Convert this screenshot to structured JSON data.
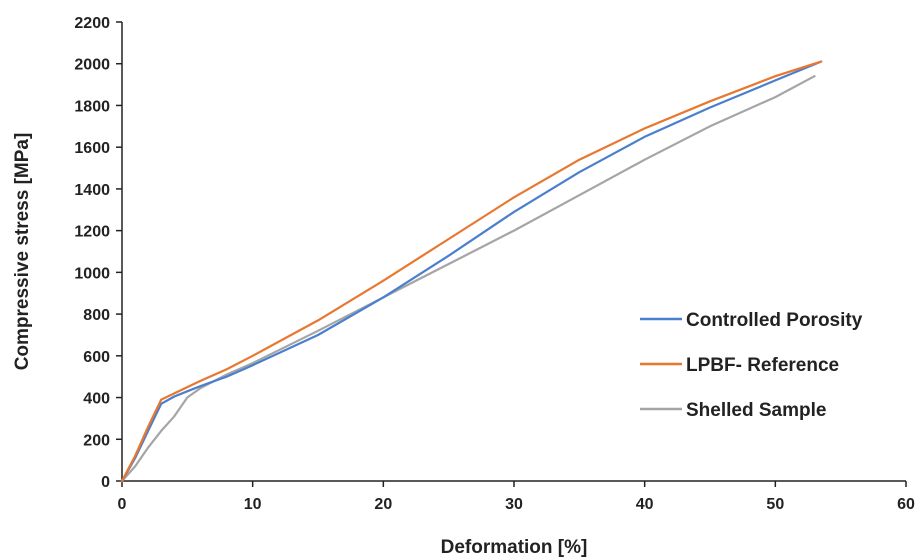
{
  "chart_data": {
    "type": "line",
    "xlabel": "Deformation [%]",
    "ylabel": "Compressive stress [MPa]",
    "xlim": [
      0,
      60
    ],
    "ylim": [
      0,
      2200
    ],
    "xticks": [
      0,
      10,
      20,
      30,
      40,
      50,
      60
    ],
    "yticks": [
      0,
      200,
      400,
      600,
      800,
      1000,
      1200,
      1400,
      1600,
      1800,
      2000,
      2200
    ],
    "grid": false,
    "legend_position": "right",
    "series": [
      {
        "name": "Controlled Porosity",
        "color": "#4a7fcf",
        "x": [
          0,
          1,
          2,
          3,
          4,
          5,
          6,
          8,
          10,
          15,
          20,
          25,
          30,
          35,
          40,
          45,
          50,
          53.5
        ],
        "y": [
          0,
          110,
          240,
          370,
          405,
          430,
          455,
          500,
          555,
          700,
          880,
          1080,
          1290,
          1480,
          1650,
          1790,
          1920,
          2010
        ]
      },
      {
        "name": "LPBF- Reference",
        "color": "#e8772f",
        "x": [
          0,
          1,
          2,
          3,
          4,
          5,
          6,
          8,
          10,
          15,
          20,
          25,
          30,
          35,
          40,
          45,
          50,
          53.5
        ],
        "y": [
          0,
          120,
          260,
          390,
          420,
          450,
          480,
          535,
          600,
          770,
          960,
          1160,
          1360,
          1540,
          1690,
          1820,
          1940,
          2010
        ]
      },
      {
        "name": "Shelled Sample",
        "color": "#a5a5a5",
        "x": [
          0,
          1,
          2,
          3,
          4,
          5,
          6,
          8,
          10,
          15,
          20,
          25,
          30,
          35,
          40,
          45,
          50,
          53
        ],
        "y": [
          0,
          70,
          160,
          240,
          310,
          400,
          445,
          510,
          565,
          720,
          880,
          1040,
          1200,
          1370,
          1540,
          1700,
          1840,
          1940
        ]
      }
    ]
  }
}
